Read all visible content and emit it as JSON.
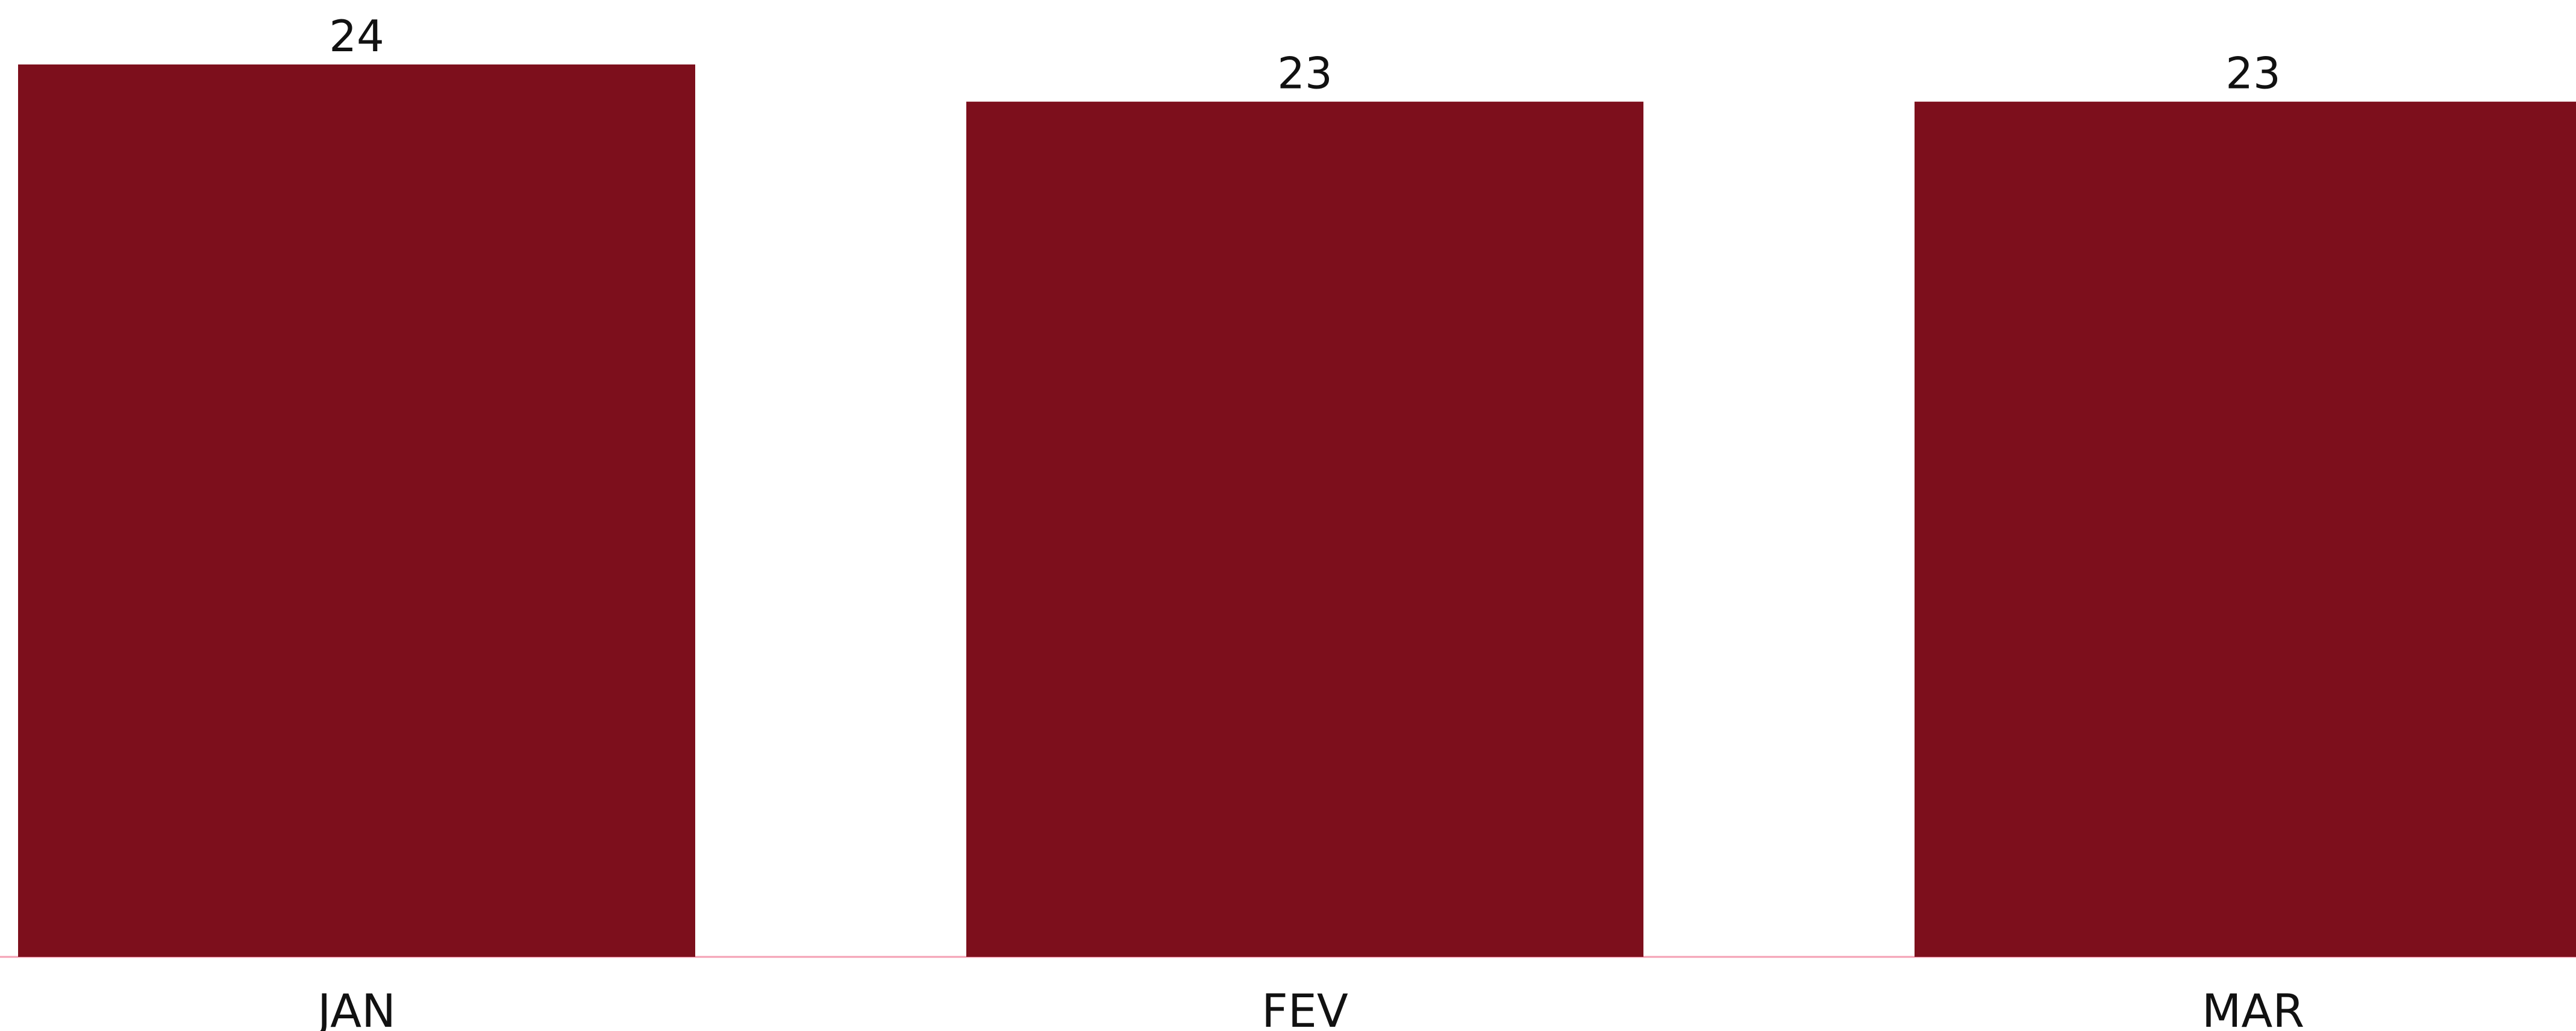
{
  "colors": {
    "bar": "#7d0f1c",
    "baseline": "#f4a0b4",
    "text": "#111111",
    "background": "#ffffff"
  },
  "chart_data": {
    "type": "bar",
    "categories": [
      "JAN",
      "FEV",
      "MAR"
    ],
    "values": [
      24,
      23,
      23
    ],
    "data_labels": [
      "24",
      "23",
      "23"
    ],
    "title": "",
    "xlabel": "",
    "ylabel": "",
    "ylim": [
      0,
      24
    ],
    "grid": false,
    "legend": "none"
  }
}
